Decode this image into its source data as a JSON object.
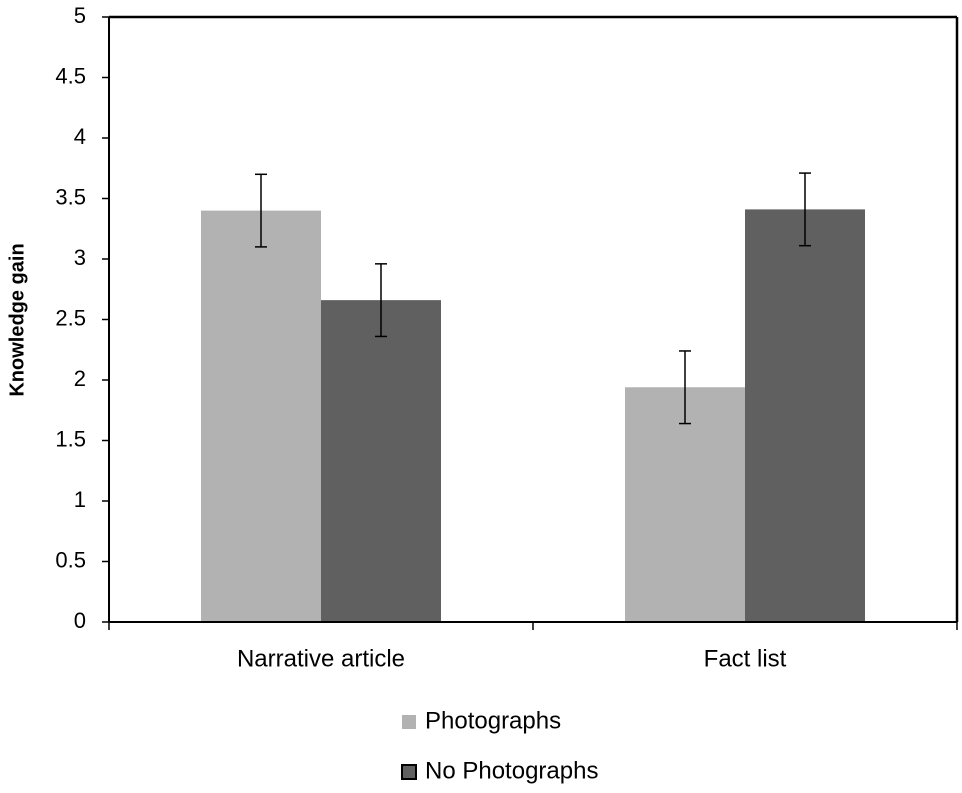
{
  "chart_data": {
    "type": "bar",
    "y_label": "Knowledge gain",
    "categories": [
      "Narrative article",
      "Fact list"
    ],
    "series": [
      {
        "name": "Photographs",
        "color": "#b2b2b2",
        "values": [
          3.4,
          1.94
        ],
        "errors": [
          0.3,
          0.3
        ]
      },
      {
        "name": "No Photographs",
        "color": "#606060",
        "values": [
          2.66,
          3.41
        ],
        "errors": [
          0.3,
          0.3
        ]
      }
    ],
    "ylim": [
      0,
      5
    ],
    "yticks": [
      0,
      0.5,
      1,
      1.5,
      2,
      2.5,
      3,
      3.5,
      4,
      4.5,
      5
    ],
    "grid": false,
    "legend": "bottom"
  }
}
